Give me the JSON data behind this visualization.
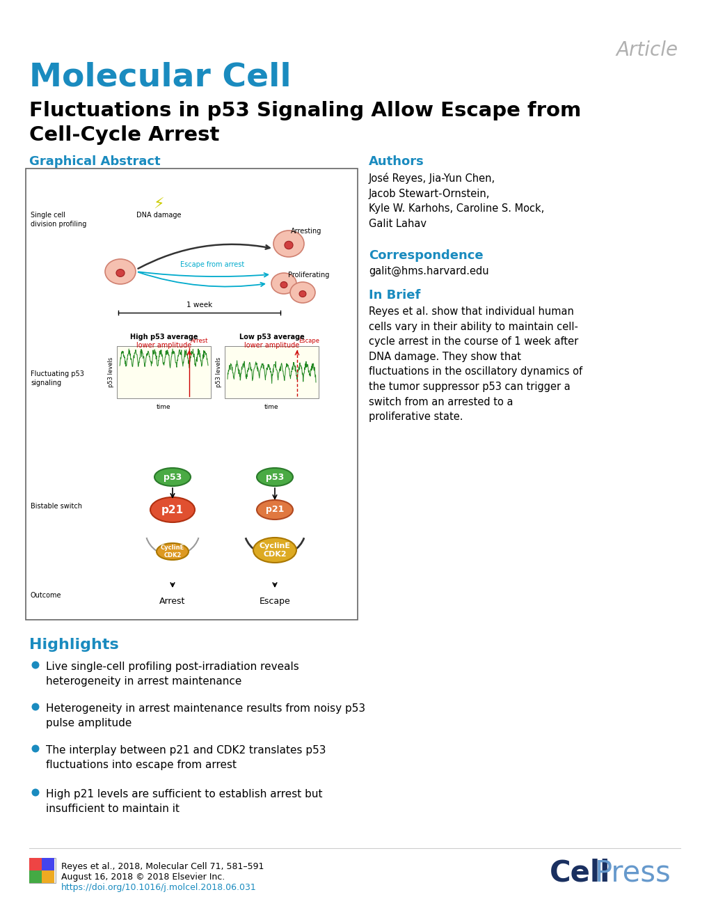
{
  "article_label": "Article",
  "article_label_color": "#b0b0b0",
  "journal_name": "Molecular Cell",
  "journal_color": "#1a8bbf",
  "title_line1": "Fluctuations in p53 Signaling Allow Escape from",
  "title_line2": "Cell-Cycle Arrest",
  "title_color": "#000000",
  "section_color": "#1a8bbf",
  "graphical_abstract_label": "Graphical Abstract",
  "authors_label": "Authors",
  "authors_text": "José Reyes, Jia-Yun Chen,\nJacob Stewart-Ornstein,\nKyle W. Karhohs, Caroline S. Mock,\nGalit Lahav",
  "correspondence_label": "Correspondence",
  "correspondence_text": "galit@hms.harvard.edu",
  "in_brief_label": "In Brief",
  "in_brief_text": "Reyes et al. show that individual human\ncells vary in their ability to maintain cell-\ncycle arrest in the course of 1 week after\nDNA damage. They show that\nfluctuations in the oscillatory dynamics of\nthe tumor suppressor p53 can trigger a\nswitch from an arrested to a\nproliferative state.",
  "highlights_label": "Highlights",
  "highlights": [
    "Live single-cell profiling post-irradiation reveals\nheterogeneity in arrest maintenance",
    "Heterogeneity in arrest maintenance results from noisy p53\npulse amplitude",
    "The interplay between p21 and CDK2 translates p53\nfluctuations into escape from arrest",
    "High p21 levels are sufficient to establish arrest but\ninsufficient to maintain it"
  ],
  "footer_text_line1": "Reyes et al., 2018, Molecular Cell 71, 581–591",
  "footer_text_line2": "August 16, 2018 © 2018 Elsevier Inc.",
  "footer_link": "https://doi.org/10.1016/j.molcel.2018.06.031",
  "footer_link_color": "#1a8bbf",
  "background_color": "#ffffff"
}
